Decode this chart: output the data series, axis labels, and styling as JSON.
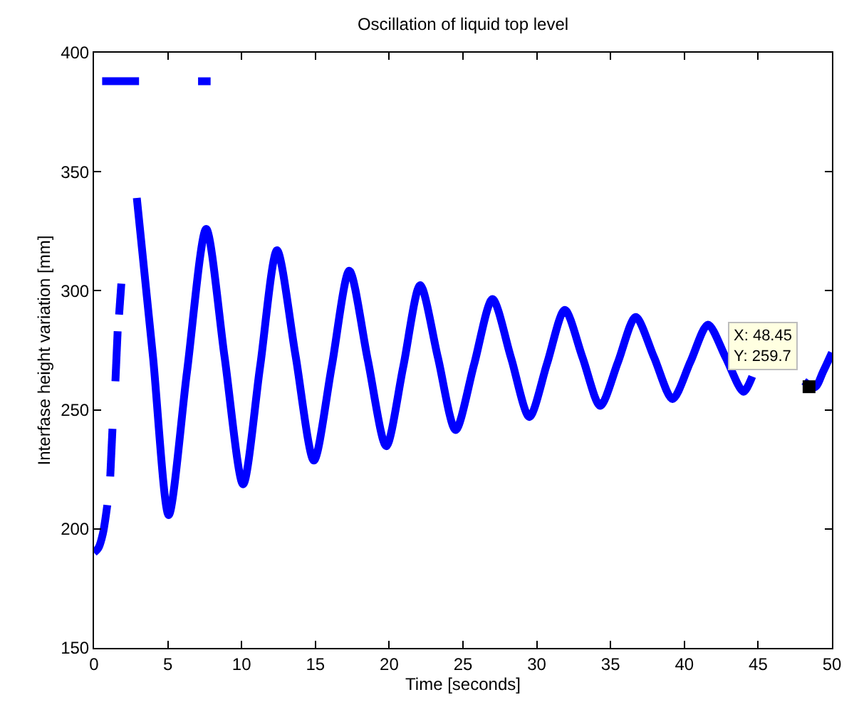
{
  "chart_data": {
    "type": "line",
    "title": "Oscillation of liquid top level",
    "xlabel": "Time [seconds]",
    "ylabel": "Interfase height variation [mm]",
    "xlim": [
      0,
      50
    ],
    "xticks": [
      0,
      5,
      10,
      15,
      20,
      25,
      30,
      35,
      40,
      45,
      50
    ],
    "ylim": [
      150,
      400
    ],
    "yticks": [
      150,
      200,
      250,
      300,
      350,
      400
    ],
    "marker": "none",
    "line_style": "solid",
    "series": [
      {
        "color": "#0000ff",
        "x": [
          2.9,
          4.0,
          5.06,
          6.3,
          7.6,
          8.85,
          10.1,
          11.25,
          12.4,
          13.65,
          14.9,
          16.1,
          17.3,
          18.55,
          19.8,
          20.95,
          22.1,
          23.3,
          24.5,
          25.75,
          27.0,
          28.25,
          29.5,
          30.7,
          31.9,
          33.1,
          34.3,
          35.5,
          36.7,
          37.95,
          39.2,
          40.4,
          41.6,
          42.8,
          44.0,
          44.6,
          45.5,
          48.1,
          48.85,
          49.4,
          50
        ],
        "values": [
          339,
          272,
          205.8,
          266,
          326,
          272,
          218.7,
          268,
          317,
          273,
          228.7,
          268,
          308.4,
          271,
          234.7,
          268,
          302.4,
          272,
          241.5,
          269,
          296.5,
          272,
          247,
          269.5,
          292,
          272,
          251.7,
          270,
          289,
          272,
          254.5,
          270,
          285.8,
          272,
          257.6,
          264,
          null,
          262,
          259.5,
          266,
          274
        ]
      },
      {
        "color": "#0000ff",
        "x": [
          0,
          0.3,
          0.6,
          0.9,
          1.0,
          1.1,
          1.25,
          1.35,
          1.45,
          1.6,
          1.65,
          1.7,
          1.85
        ],
        "values": [
          190,
          192,
          198,
          210,
          null,
          222,
          242,
          null,
          262,
          283,
          null,
          290,
          303
        ]
      },
      {
        "color": "#0000ff",
        "x": [
          0.55,
          3.05,
          5,
          7.05,
          7.9
        ],
        "values": [
          388,
          388,
          null,
          388,
          388
        ]
      },
      {
        "type": "scatter",
        "color": "#000000",
        "marker": "square",
        "x": [
          48.45
        ],
        "values": [
          259.7
        ]
      }
    ],
    "annotations": [
      {
        "text": "X: 48.45\nY: 259.7",
        "x": 48.45,
        "y": 259.7
      }
    ]
  }
}
